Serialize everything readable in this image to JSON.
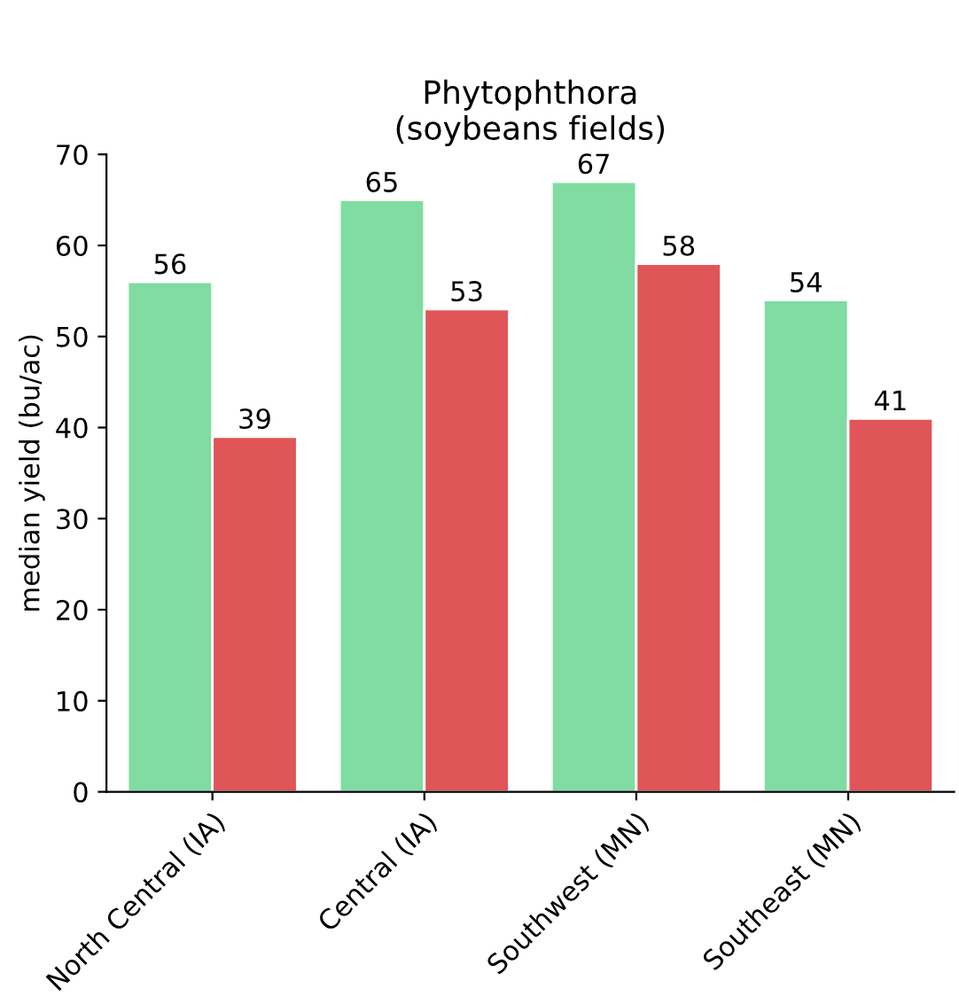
{
  "chart_data": {
    "type": "bar",
    "title": "Phytophthora\n(soybeans fields)",
    "ylabel": "median yield (bu/ac)",
    "categories": [
      "North Central (IA)",
      "Central (IA)",
      "Southwest (MN)",
      "Southeast (MN)"
    ],
    "series": [
      {
        "color": "#80dca2",
        "values": [
          56,
          65,
          67,
          54
        ]
      },
      {
        "color": "#e05558",
        "values": [
          39,
          53,
          58,
          41
        ]
      }
    ],
    "ylim": [
      0,
      70
    ],
    "yticks": [
      0,
      10,
      20,
      30,
      40,
      50,
      60,
      70
    ],
    "grid": false,
    "legend": false,
    "data_labels": true
  }
}
